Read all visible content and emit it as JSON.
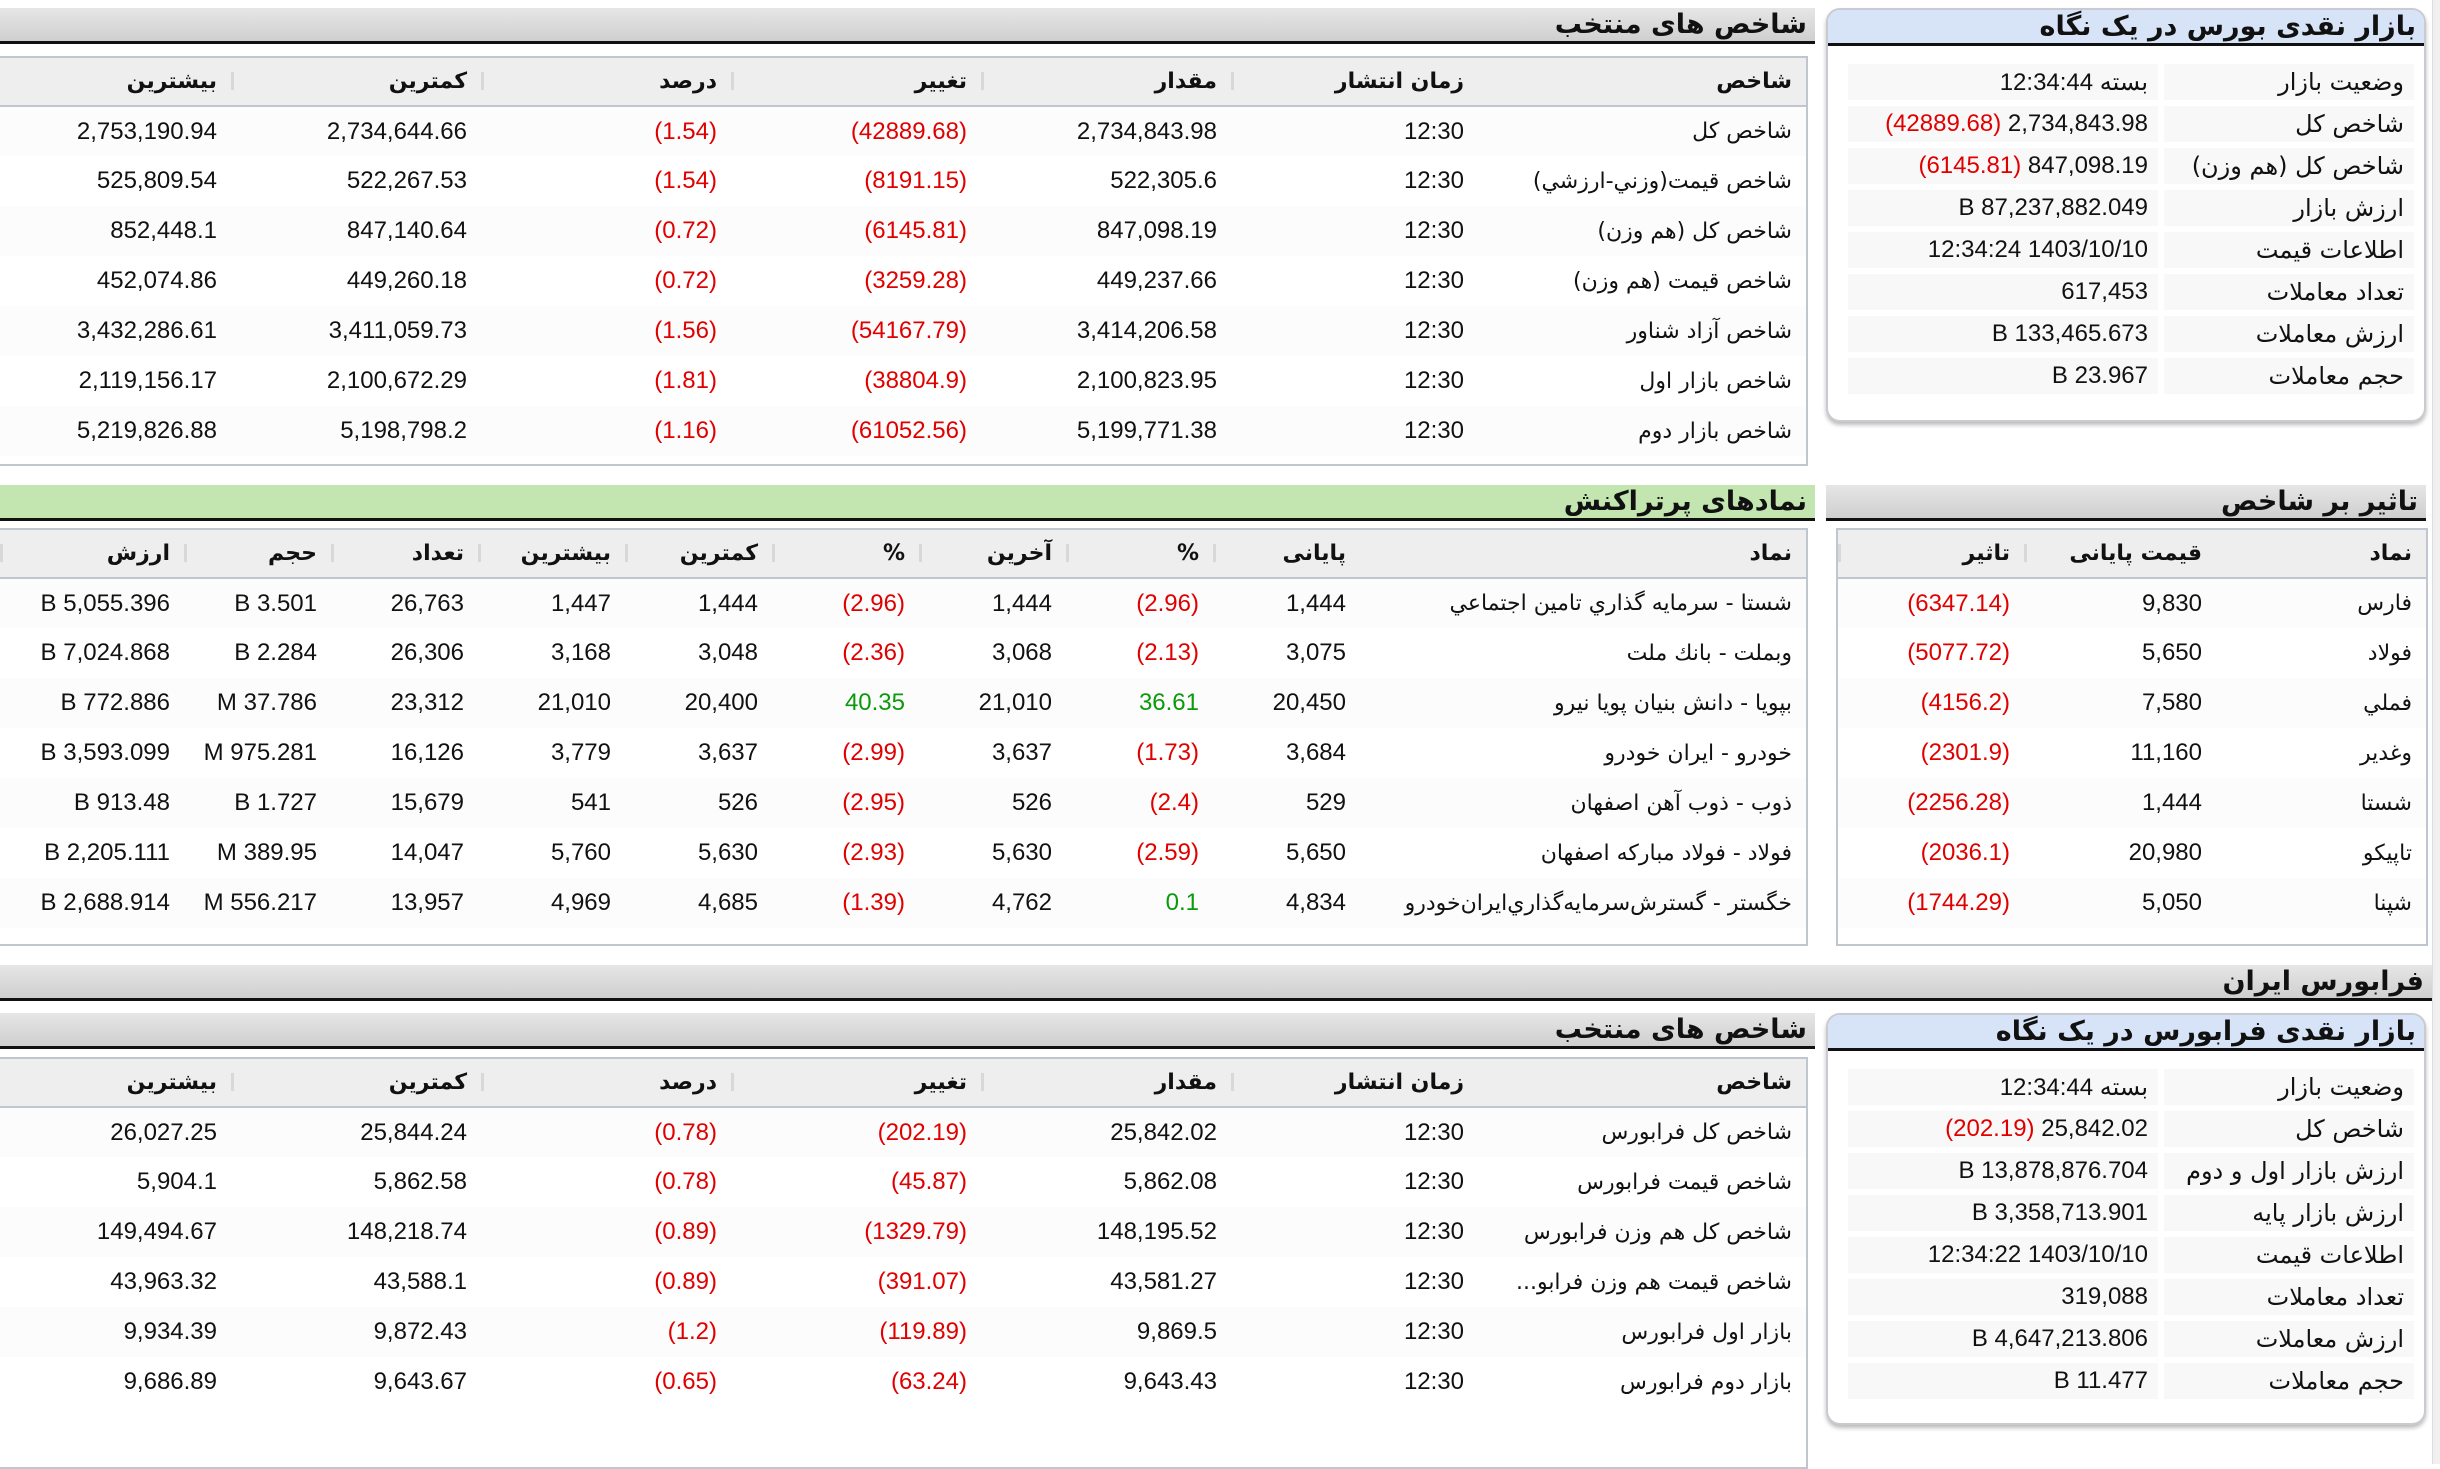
{
  "bourse": {
    "selected_title": "شاخص های منتخب",
    "selected_headers": [
      "شاخص",
      "زمان انتشار",
      "مقدار",
      "تغییر",
      "درصد",
      "کمترین",
      "بیشترین"
    ],
    "selected_rows": [
      [
        "شاخص كل",
        "12:30",
        "2,734,843.98",
        "(42889.68)",
        "(1.54)",
        "2,734,644.66",
        "2,753,190.94"
      ],
      [
        "شاخص قيمت(وزني-ارزشي)",
        "12:30",
        "522,305.6",
        "(8191.15)",
        "(1.54)",
        "522,267.53",
        "525,809.54"
      ],
      [
        "شاخص كل (هم وزن)",
        "12:30",
        "847,098.19",
        "(6145.81)",
        "(0.72)",
        "847,140.64",
        "852,448.1"
      ],
      [
        "شاخص قيمت (هم وزن)",
        "12:30",
        "449,237.66",
        "(3259.28)",
        "(0.72)",
        "449,260.18",
        "452,074.86"
      ],
      [
        "شاخص آزاد شناور",
        "12:30",
        "3,414,206.58",
        "(54167.79)",
        "(1.56)",
        "3,411,059.73",
        "3,432,286.61"
      ],
      [
        "شاخص بازار اول",
        "12:30",
        "2,100,823.95",
        "(38804.9)",
        "(1.81)",
        "2,100,672.29",
        "2,119,156.17"
      ],
      [
        "شاخص بازار دوم",
        "12:30",
        "5,199,771.38",
        "(61052.56)",
        "(1.16)",
        "5,198,798.2",
        "5,219,826.88"
      ]
    ],
    "glance_title": "بازار نقدی بورس در یک نگاه",
    "glance_rows": [
      {
        "label": "وضعیت بازار",
        "value": "بسته 12:34:44",
        "change": ""
      },
      {
        "label": "شاخص کل",
        "value": "2,734,843.98",
        "change": "(42889.68)"
      },
      {
        "label": "شاخص کل (هم وزن)",
        "value": "847,098.19",
        "change": "(6145.81)"
      },
      {
        "label": "ارزش بازار",
        "value": "87,237,882.049 B",
        "change": ""
      },
      {
        "label": "اطلاعات قیمت",
        "value": "1403/10/10 12:34:24",
        "change": ""
      },
      {
        "label": "تعداد معاملات",
        "value": "617,453",
        "change": ""
      },
      {
        "label": "ارزش معاملات",
        "value": "133,465.673 B",
        "change": ""
      },
      {
        "label": "حجم معاملات",
        "value": "23.967 B",
        "change": ""
      }
    ],
    "active_title": "نمادهای پرتراکنش",
    "active_headers": [
      "نماد",
      "پایانی",
      "%",
      "آخرین",
      "%",
      "کمترین",
      "بیشترین",
      "تعداد",
      "حجم",
      "ارزش"
    ],
    "active_rows": [
      [
        "شستا - سرمايه گذاري تامين اجتماعي",
        "1,444",
        "(2.96)",
        "1,444",
        "(2.96)",
        "1,444",
        "1,447",
        "26,763",
        "3.501 B",
        "5,055.396 B"
      ],
      [
        "وبملت - بانك ملت",
        "3,075",
        "(2.13)",
        "3,068",
        "(2.36)",
        "3,048",
        "3,168",
        "26,306",
        "2.284 B",
        "7,024.868 B"
      ],
      [
        "بپويا - دانش بنيان پويا نيرو",
        "20,450",
        "36.61",
        "21,010",
        "40.35",
        "20,400",
        "21,010",
        "23,312",
        "37.786 M",
        "772.886 B"
      ],
      [
        "خودرو - ايران خودرو",
        "3,684",
        "(1.73)",
        "3,637",
        "(2.99)",
        "3,637",
        "3,779",
        "16,126",
        "975.281 M",
        "3,593.099 B"
      ],
      [
        "ذوب - ذوب آهن اصفهان",
        "529",
        "(2.4)",
        "526",
        "(2.95)",
        "526",
        "541",
        "15,679",
        "1.727 B",
        "913.48 B"
      ],
      [
        "فولاد - فولاد مباركه اصفهان",
        "5,650",
        "(2.59)",
        "5,630",
        "(2.93)",
        "5,630",
        "5,760",
        "14,047",
        "389.95 M",
        "2,205.111 B"
      ],
      [
        "خگستر - گسترش‌سرمايه‌گذاري‌ايران‌خودرو",
        "4,834",
        "0.1",
        "4,762",
        "(1.39)",
        "4,685",
        "4,969",
        "13,957",
        "556.217 M",
        "2,688.914 B"
      ]
    ],
    "impact_title": "تاثیر بر شاخص",
    "impact_headers": [
      "نماد",
      "قیمت پایانی",
      "تاثیر"
    ],
    "impact_rows": [
      [
        "فارس",
        "9,830",
        "(6347.14)"
      ],
      [
        "فولاد",
        "5,650",
        "(5077.72)"
      ],
      [
        "فملي",
        "7,580",
        "(4156.2)"
      ],
      [
        "وغدير",
        "11,160",
        "(2301.9)"
      ],
      [
        "شستا",
        "1,444",
        "(2256.28)"
      ],
      [
        "تاپيكو",
        "20,980",
        "(2036.1)"
      ],
      [
        "شپنا",
        "5,050",
        "(1744.29)"
      ]
    ]
  },
  "farabourse": {
    "section_title": "فرابورس ایران",
    "selected_title": "شاخص های منتخب",
    "selected_headers": [
      "شاخص",
      "زمان انتشار",
      "مقدار",
      "تغییر",
      "درصد",
      "کمترین",
      "بیشترین"
    ],
    "selected_rows": [
      [
        "شاخص كل فرابورس",
        "12:30",
        "25,842.02",
        "(202.19)",
        "(0.78)",
        "25,844.24",
        "26,027.25"
      ],
      [
        "شاخص قيمت فرابورس",
        "12:30",
        "5,862.08",
        "(45.87)",
        "(0.78)",
        "5,862.58",
        "5,904.1"
      ],
      [
        "شاخص كل هم وزن فرابورس",
        "12:30",
        "148,195.52",
        "(1329.79)",
        "(0.89)",
        "148,218.74",
        "149,494.67"
      ],
      [
        "شاخص قيمت هم وزن فرابو...",
        "12:30",
        "43,581.27",
        "(391.07)",
        "(0.89)",
        "43,588.1",
        "43,963.32"
      ],
      [
        "بازار اول فرابورس",
        "12:30",
        "9,869.5",
        "(119.89)",
        "(1.2)",
        "9,872.43",
        "9,934.39"
      ],
      [
        "بازار دوم فرابورس",
        "12:30",
        "9,643.43",
        "(63.24)",
        "(0.65)",
        "9,643.67",
        "9,686.89"
      ]
    ],
    "glance_title": "بازار نقدی فرابورس در یک نگاه",
    "glance_rows": [
      {
        "label": "وضعیت بازار",
        "value": "بسته 12:34:44",
        "change": ""
      },
      {
        "label": "شاخص کل",
        "value": "25,842.02",
        "change": "(202.19)"
      },
      {
        "label": "ارزش بازار اول و دوم",
        "value": "13,878,876.704 B",
        "change": ""
      },
      {
        "label": "ارزش بازار پایه",
        "value": "3,358,713.901 B",
        "change": ""
      },
      {
        "label": "اطلاعات قیمت",
        "value": "1403/10/10 12:34:22",
        "change": ""
      },
      {
        "label": "تعداد معاملات",
        "value": "319,088",
        "change": ""
      },
      {
        "label": "ارزش معاملات",
        "value": "4,647,213.806 B",
        "change": ""
      },
      {
        "label": "حجم معاملات",
        "value": "11.477 B",
        "change": ""
      }
    ]
  },
  "colors": {
    "negative": "#e00000",
    "positive": "#0a9a0a",
    "active_header": "#c3e6b0",
    "glance_header": "#d7e4f8"
  }
}
